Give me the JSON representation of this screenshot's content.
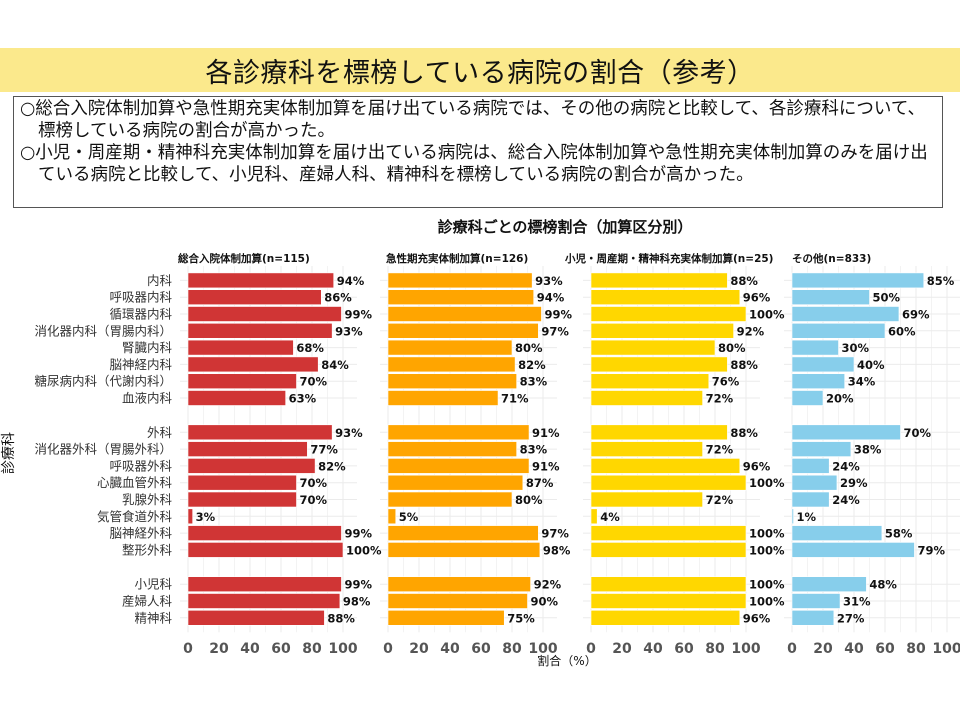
{
  "slide": {
    "title": "各診療科を標榜している病院の割合（参考）",
    "summary": [
      "○総合入院体制加算や急性期充実体制加算を届け出ている病院では、その他の病院と比較して、各診療科について、標榜している病院の割合が高かった。",
      "○小児・周産期・精神科充実体制加算を届け出ている病院は、総合入院体制加算や急性期充実体制加算のみを届け出ている病院と比較して、小児科、産婦人科、精神科を標榜している病院の割合が高かった。"
    ]
  },
  "chart_data": {
    "type": "bar",
    "orientation": "horizontal",
    "title": "診療科ごとの標榜割合（加算区分別）",
    "xlabel": "割合（%）",
    "ylabel": "診療科",
    "xlim": [
      0,
      100
    ],
    "xticks": [
      0,
      20,
      40,
      60,
      80,
      100
    ],
    "grid": true,
    "value_suffix": "%",
    "category_groups": [
      [
        "内科",
        "呼吸器内科",
        "循環器内科",
        "消化器内科（胃腸内科）",
        "腎臓内科",
        "脳神経内科",
        "糖尿病内科（代謝内科）",
        "血液内科"
      ],
      [
        "外科",
        "消化器外科（胃腸外科）",
        "呼吸器外科",
        "心臓血管外科",
        "乳腺外科",
        "気管食道外科",
        "脳神経外科",
        "整形外科"
      ],
      [
        "小児科",
        "産婦人科",
        "精神科"
      ]
    ],
    "categories": [
      "内科",
      "呼吸器内科",
      "循環器内科",
      "消化器内科（胃腸内科）",
      "腎臓内科",
      "脳神経内科",
      "糖尿病内科（代謝内科）",
      "血液内科",
      "外科",
      "消化器外科（胃腸外科）",
      "呼吸器外科",
      "心臓血管外科",
      "乳腺外科",
      "気管食道外科",
      "脳神経外科",
      "整形外科",
      "小児科",
      "産婦人科",
      "精神科"
    ],
    "series": [
      {
        "name": "総合入院体制加算(n=115)",
        "color": "#d03535",
        "values": [
          94,
          86,
          99,
          93,
          68,
          84,
          70,
          63,
          93,
          77,
          82,
          70,
          70,
          3,
          99,
          100,
          99,
          98,
          88
        ]
      },
      {
        "name": "急性期充実体制加算(n=126)",
        "color": "#ffa500",
        "values": [
          93,
          94,
          99,
          97,
          80,
          82,
          83,
          71,
          91,
          83,
          91,
          87,
          80,
          5,
          97,
          98,
          92,
          90,
          75
        ]
      },
      {
        "name": "小児・周産期・精神科充実体制加算(n=25)",
        "color": "#ffd700",
        "values": [
          88,
          96,
          100,
          92,
          80,
          88,
          76,
          72,
          88,
          72,
          96,
          100,
          72,
          4,
          100,
          100,
          100,
          100,
          96
        ]
      },
      {
        "name": "その他(n=833)",
        "color": "#87ceeb",
        "values": [
          85,
          50,
          69,
          60,
          30,
          40,
          34,
          20,
          70,
          38,
          24,
          29,
          24,
          1,
          58,
          79,
          48,
          31,
          27
        ]
      }
    ]
  }
}
